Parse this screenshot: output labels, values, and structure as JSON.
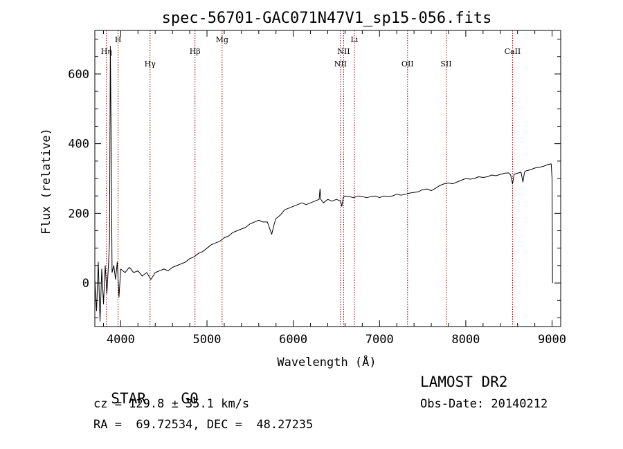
{
  "chart_data": {
    "type": "line",
    "title": "spec-56701-GAC071N47V1_sp15-056.fits",
    "xlabel": "Wavelength (Å)",
    "ylabel": "Flux (relative)",
    "xlim": [
      3700,
      9100
    ],
    "ylim": [
      -125,
      725
    ],
    "xticks": [
      4000,
      5000,
      6000,
      7000,
      8000,
      9000
    ],
    "yticks": [
      0,
      200,
      400,
      600
    ],
    "grid": false,
    "line_color": "#000000",
    "marker_color": "#8b0000",
    "spectral_lines": [
      {
        "label": "Hη",
        "wavelength": 3835,
        "row": 2
      },
      {
        "label": "H",
        "wavelength": 3969,
        "row": 1
      },
      {
        "label": "Hγ",
        "wavelength": 4340,
        "row": 3
      },
      {
        "label": "Hβ",
        "wavelength": 4861,
        "row": 2
      },
      {
        "label": "Mg",
        "wavelength": 5175,
        "row": 1
      },
      {
        "label": "NII",
        "wavelength": 6548,
        "row": 3
      },
      {
        "label": "NII",
        "wavelength": 6584,
        "row": 2
      },
      {
        "label": "Li",
        "wavelength": 6708,
        "row": 1
      },
      {
        "label": "OII",
        "wavelength": 7325,
        "row": 3
      },
      {
        "label": "SII",
        "wavelength": 7772,
        "row": 3
      },
      {
        "label": "CaII",
        "wavelength": 8542,
        "row": 2
      }
    ],
    "series": [
      {
        "x": [
          3700,
          3720,
          3740,
          3760,
          3780,
          3800,
          3820,
          3840,
          3860,
          3870,
          3880,
          3890,
          3900,
          3920,
          3940,
          3960,
          3980,
          4000,
          4050,
          4100,
          4150,
          4200,
          4250,
          4300,
          4350,
          4400,
          4450,
          4500,
          4550,
          4600,
          4650,
          4700,
          4750,
          4800,
          4850,
          4900,
          4950,
          5000,
          5050,
          5100,
          5150,
          5200,
          5250,
          5300,
          5350,
          5400,
          5450,
          5500,
          5550,
          5600,
          5650,
          5700,
          5750,
          5780,
          5800,
          5850,
          5900,
          5950,
          6000,
          6050,
          6100,
          6150,
          6200,
          6250,
          6300,
          6310,
          6320,
          6350,
          6400,
          6450,
          6500,
          6550,
          6563,
          6580,
          6600,
          6650,
          6700,
          6750,
          6800,
          6850,
          6900,
          6950,
          7000,
          7050,
          7100,
          7150,
          7200,
          7250,
          7300,
          7350,
          7400,
          7450,
          7500,
          7550,
          7600,
          7650,
          7700,
          7750,
          7800,
          7850,
          7900,
          7950,
          8000,
          8050,
          8100,
          8150,
          8200,
          8250,
          8300,
          8350,
          8400,
          8450,
          8498,
          8520,
          8542,
          8560,
          8600,
          8640,
          8662,
          8680,
          8700,
          8750,
          8800,
          8850,
          8900,
          8950,
          8990,
          9000,
          9005
        ],
        "y": [
          10,
          -80,
          60,
          -110,
          40,
          -60,
          50,
          -30,
          60,
          120,
          680,
          390,
          30,
          50,
          10,
          60,
          -40,
          40,
          30,
          45,
          30,
          35,
          20,
          30,
          10,
          30,
          35,
          40,
          35,
          45,
          50,
          55,
          60,
          70,
          75,
          85,
          90,
          100,
          110,
          115,
          120,
          130,
          135,
          145,
          150,
          155,
          160,
          170,
          175,
          180,
          175,
          175,
          140,
          170,
          185,
          195,
          210,
          215,
          220,
          225,
          230,
          225,
          230,
          235,
          240,
          270,
          240,
          230,
          240,
          235,
          240,
          235,
          220,
          245,
          250,
          248,
          245,
          250,
          248,
          245,
          248,
          250,
          245,
          250,
          248,
          250,
          255,
          252,
          255,
          258,
          260,
          262,
          268,
          270,
          265,
          272,
          280,
          285,
          287,
          285,
          290,
          295,
          300,
          298,
          300,
          305,
          303,
          305,
          310,
          308,
          312,
          315,
          316,
          310,
          285,
          312,
          315,
          318,
          290,
          318,
          322,
          325,
          330,
          332,
          335,
          340,
          342,
          300,
          0
        ]
      }
    ]
  },
  "info": {
    "object_class": "STAR",
    "subclass": "G0",
    "survey": "LAMOST DR2",
    "redshift": "cz = 129.8 ± 35.1 km/s",
    "obs_date": "Obs-Date: 20140212",
    "coords": "RA =  69.72534, DEC =  48.27235"
  }
}
